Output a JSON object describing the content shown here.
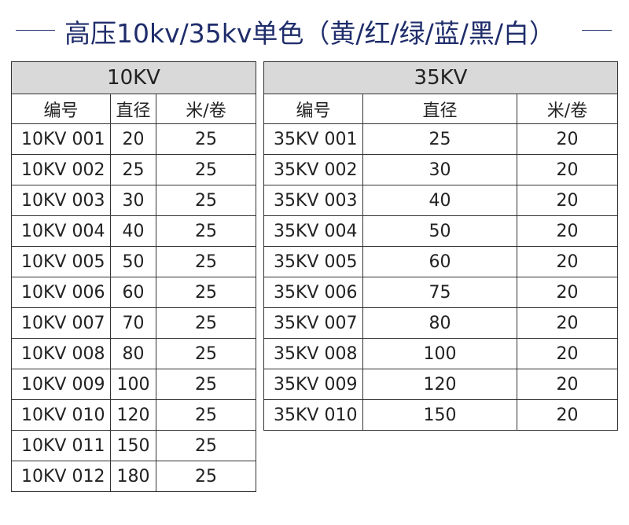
{
  "title": "高压10kv/35kv单色（黄/红/绿/蓝/黑/白）",
  "table_10kv": {
    "heading": "10KV",
    "columns": [
      "编号",
      "直径",
      "米/卷"
    ],
    "rows": [
      [
        "10KV 001",
        "20",
        "25"
      ],
      [
        "10KV 002",
        "25",
        "25"
      ],
      [
        "10KV 003",
        "30",
        "25"
      ],
      [
        "10KV 004",
        "40",
        "25"
      ],
      [
        "10KV 005",
        "50",
        "25"
      ],
      [
        "10KV 006",
        "60",
        "25"
      ],
      [
        "10KV 007",
        "70",
        "25"
      ],
      [
        "10KV 008",
        "80",
        "25"
      ],
      [
        "10KV 009",
        "100",
        "25"
      ],
      [
        "10KV 010",
        "120",
        "25"
      ],
      [
        "10KV 011",
        "150",
        "25"
      ],
      [
        "10KV 012",
        "180",
        "25"
      ]
    ]
  },
  "table_35kv": {
    "heading": "35KV",
    "columns": [
      "编号",
      "直径",
      "米/卷"
    ],
    "rows": [
      [
        "35KV 001",
        "25",
        "20"
      ],
      [
        "35KV 002",
        "30",
        "20"
      ],
      [
        "35KV 003",
        "40",
        "20"
      ],
      [
        "35KV 004",
        "50",
        "20"
      ],
      [
        "35KV 005",
        "60",
        "20"
      ],
      [
        "35KV 006",
        "75",
        "20"
      ],
      [
        "35KV 007",
        "80",
        "20"
      ],
      [
        "35KV 008",
        "100",
        "20"
      ],
      [
        "35KV 009",
        "120",
        "20"
      ],
      [
        "35KV 010",
        "150",
        "20"
      ]
    ]
  },
  "colors": {
    "title": "#1f2d6b",
    "header_bg": "#d9d9d9",
    "border": "#333333"
  }
}
